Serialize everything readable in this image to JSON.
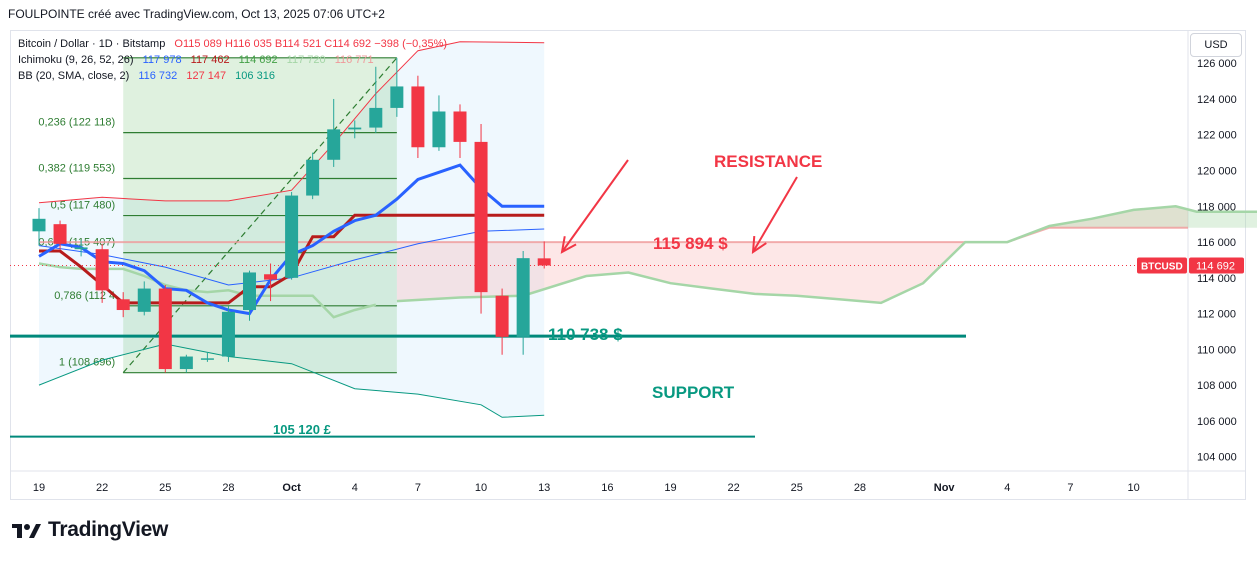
{
  "header": {
    "text": "FOULPOINTE créé avec TradingView.com, Oct 13, 2025 07:06 UTC+2"
  },
  "legend": {
    "symbol": "Bitcoin / Dollar · 1D · Bitstamp",
    "ohlc": {
      "o": "O115 089",
      "h": "H116 035",
      "b": "B114 521",
      "c": "C114 692",
      "change": "−398 (−0,35%)"
    },
    "ichimoku": {
      "label": "Ichimoku (9, 26, 52, 26)",
      "v1": "117 978",
      "v2": "117 462",
      "v3": "114 692",
      "v4": "117 720",
      "v5": "116 771"
    },
    "bb": {
      "label": "BB (20, SMA, close, 2)",
      "v1": "116 732",
      "v2": "127 147",
      "v3": "106 316"
    }
  },
  "currency_button": "USD",
  "brand": "TradingView",
  "colors": {
    "up": "#26a69a",
    "down": "#f23645",
    "tenkan": "#2962ff",
    "kijun": "#b71c1c",
    "chikou": "#43a047",
    "spanA": "#a5d6a7",
    "spanB": "#ef9a9a",
    "bb": "#2962ff",
    "bbUpper": "#f23645",
    "bbLower": "#089981",
    "annotation_red": "#f23645",
    "annotation_green": "#089981",
    "fib": "#2e7d32"
  },
  "chart_data": {
    "type": "candlestick",
    "price_axis": {
      "ylim": [
        103200,
        127800
      ],
      "ticks": [
        104000,
        106000,
        108000,
        110000,
        112000,
        114000,
        116000,
        118000,
        120000,
        122000,
        124000,
        126000
      ],
      "tick_labels": [
        "104 000",
        "106 000",
        "108 000",
        "110 000",
        "112 000",
        "114 000",
        "116 000",
        "118 000",
        "120 000",
        "122 000",
        "124 000",
        "126 000"
      ]
    },
    "last_price": {
      "symbol": "BTCUSD",
      "value": 114692,
      "label": "114 692"
    },
    "time_axis": {
      "ticks": [
        {
          "d": "2025-09-19",
          "label": "19"
        },
        {
          "d": "2025-09-22",
          "label": "22"
        },
        {
          "d": "2025-09-25",
          "label": "25"
        },
        {
          "d": "2025-09-28",
          "label": "28"
        },
        {
          "d": "2025-10-01",
          "label": "Oct"
        },
        {
          "d": "2025-10-04",
          "label": "4"
        },
        {
          "d": "2025-10-07",
          "label": "7"
        },
        {
          "d": "2025-10-10",
          "label": "10"
        },
        {
          "d": "2025-10-13",
          "label": "13"
        },
        {
          "d": "2025-10-16",
          "label": "16"
        },
        {
          "d": "2025-10-19",
          "label": "19"
        },
        {
          "d": "2025-10-22",
          "label": "22"
        },
        {
          "d": "2025-10-25",
          "label": "25"
        },
        {
          "d": "2025-10-28",
          "label": "28"
        },
        {
          "d": "2025-11-01",
          "label": "Nov"
        },
        {
          "d": "2025-11-04",
          "label": "4"
        },
        {
          "d": "2025-11-07",
          "label": "7"
        },
        {
          "d": "2025-11-10",
          "label": "10"
        }
      ]
    },
    "candles": [
      {
        "d": "2025-09-19",
        "o": 116600,
        "h": 117900,
        "l": 115800,
        "c": 117300
      },
      {
        "d": "2025-09-20",
        "o": 117000,
        "h": 117200,
        "l": 115600,
        "c": 115900
      },
      {
        "d": "2025-09-21",
        "o": 115600,
        "h": 116100,
        "l": 115200,
        "c": 115700
      },
      {
        "d": "2025-09-22",
        "o": 115600,
        "h": 115900,
        "l": 112600,
        "c": 113300
      },
      {
        "d": "2025-09-23",
        "o": 112800,
        "h": 113200,
        "l": 111800,
        "c": 112200
      },
      {
        "d": "2025-09-24",
        "o": 112100,
        "h": 113800,
        "l": 111900,
        "c": 113400
      },
      {
        "d": "2025-09-25",
        "o": 113400,
        "h": 113600,
        "l": 108700,
        "c": 108900
      },
      {
        "d": "2025-09-26",
        "o": 108900,
        "h": 109700,
        "l": 108700,
        "c": 109600
      },
      {
        "d": "2025-09-27",
        "o": 109500,
        "h": 109800,
        "l": 109300,
        "c": 109500
      },
      {
        "d": "2025-09-28",
        "o": 109600,
        "h": 112400,
        "l": 109300,
        "c": 112100
      },
      {
        "d": "2025-09-29",
        "o": 112200,
        "h": 114400,
        "l": 111600,
        "c": 114300
      },
      {
        "d": "2025-09-30",
        "o": 114200,
        "h": 114800,
        "l": 112700,
        "c": 113900
      },
      {
        "d": "2025-10-01",
        "o": 114000,
        "h": 118800,
        "l": 113900,
        "c": 118600
      },
      {
        "d": "2025-10-02",
        "o": 118600,
        "h": 121000,
        "l": 118400,
        "c": 120600
      },
      {
        "d": "2025-10-03",
        "o": 120600,
        "h": 124000,
        "l": 120200,
        "c": 122300
      },
      {
        "d": "2025-10-04",
        "o": 122300,
        "h": 122800,
        "l": 121800,
        "c": 122400
      },
      {
        "d": "2025-10-05",
        "o": 122400,
        "h": 125800,
        "l": 122100,
        "c": 123500
      },
      {
        "d": "2025-10-06",
        "o": 123500,
        "h": 126300,
        "l": 123000,
        "c": 124700
      },
      {
        "d": "2025-10-07",
        "o": 124700,
        "h": 125300,
        "l": 120700,
        "c": 121300
      },
      {
        "d": "2025-10-08",
        "o": 121300,
        "h": 124200,
        "l": 121100,
        "c": 123300
      },
      {
        "d": "2025-10-09",
        "o": 123300,
        "h": 123700,
        "l": 120700,
        "c": 121600
      },
      {
        "d": "2025-10-10",
        "o": 121600,
        "h": 122600,
        "l": 112000,
        "c": 113200
      },
      {
        "d": "2025-10-11",
        "o": 113000,
        "h": 113400,
        "l": 109700,
        "c": 110700
      },
      {
        "d": "2025-10-12",
        "o": 110700,
        "h": 115500,
        "l": 109700,
        "c": 115100
      },
      {
        "d": "2025-10-13",
        "o": 115089,
        "h": 116035,
        "l": 114521,
        "c": 114692
      }
    ],
    "tenkan": [
      [
        "2025-09-19",
        115200
      ],
      [
        "2025-09-20",
        115900
      ],
      [
        "2025-09-21",
        115700
      ],
      [
        "2025-09-22",
        114900
      ],
      [
        "2025-09-23",
        114800
      ],
      [
        "2025-09-24",
        114400
      ],
      [
        "2025-09-25",
        113400
      ],
      [
        "2025-09-26",
        113300
      ],
      [
        "2025-09-27",
        112600
      ],
      [
        "2025-09-28",
        112200
      ],
      [
        "2025-09-29",
        112000
      ],
      [
        "2025-09-30",
        113900
      ],
      [
        "2025-10-01",
        115300
      ],
      [
        "2025-10-02",
        115800
      ],
      [
        "2025-10-03",
        116600
      ],
      [
        "2025-10-04",
        117200
      ],
      [
        "2025-10-05",
        117500
      ],
      [
        "2025-10-06",
        118400
      ],
      [
        "2025-10-07",
        119500
      ],
      [
        "2025-10-08",
        119900
      ],
      [
        "2025-10-09",
        120300
      ],
      [
        "2025-10-10",
        119000
      ],
      [
        "2025-10-11",
        118000
      ],
      [
        "2025-10-12",
        118000
      ],
      [
        "2025-10-13",
        118000
      ]
    ],
    "kijun": [
      [
        "2025-09-19",
        115500
      ],
      [
        "2025-09-20",
        115500
      ],
      [
        "2025-09-21",
        114600
      ],
      [
        "2025-09-22",
        113600
      ],
      [
        "2025-09-23",
        112600
      ],
      [
        "2025-09-24",
        112600
      ],
      [
        "2025-09-25",
        112600
      ],
      [
        "2025-09-26",
        112600
      ],
      [
        "2025-09-27",
        112600
      ],
      [
        "2025-09-28",
        112600
      ],
      [
        "2025-09-29",
        113500
      ],
      [
        "2025-09-30",
        113500
      ],
      [
        "2025-10-01",
        114200
      ],
      [
        "2025-10-02",
        116300
      ],
      [
        "2025-10-03",
        116300
      ],
      [
        "2025-10-04",
        117500
      ],
      [
        "2025-10-05",
        117500
      ],
      [
        "2025-10-06",
        117500
      ],
      [
        "2025-10-07",
        117500
      ],
      [
        "2025-10-08",
        117500
      ],
      [
        "2025-10-09",
        117500
      ],
      [
        "2025-10-10",
        117500
      ],
      [
        "2025-10-11",
        117500
      ],
      [
        "2025-10-12",
        117500
      ],
      [
        "2025-10-13",
        117500
      ]
    ],
    "chikou": [
      [
        "2025-09-19",
        114800
      ],
      [
        "2025-09-20",
        114600
      ],
      [
        "2025-09-21",
        114500
      ],
      [
        "2025-09-22",
        114500
      ],
      [
        "2025-09-23",
        114500
      ],
      [
        "2025-09-24",
        114100
      ],
      [
        "2025-09-25",
        113600
      ],
      [
        "2025-09-26",
        113300
      ],
      [
        "2025-09-27",
        113200
      ],
      [
        "2025-09-28",
        113300
      ],
      [
        "2025-09-29",
        113000
      ],
      [
        "2025-09-30",
        113000
      ],
      [
        "2025-10-01",
        113000
      ],
      [
        "2025-10-02",
        113000
      ],
      [
        "2025-10-03",
        111800
      ],
      [
        "2025-10-04",
        112200
      ],
      [
        "2025-10-05",
        112500
      ]
    ],
    "span_a": [
      [
        "2025-10-06",
        112700
      ],
      [
        "2025-10-09",
        112900
      ],
      [
        "2025-10-12",
        113000
      ],
      [
        "2025-10-15",
        114100
      ],
      [
        "2025-10-17",
        114300
      ],
      [
        "2025-10-19",
        113700
      ],
      [
        "2025-10-21",
        113400
      ],
      [
        "2025-10-23",
        113100
      ],
      [
        "2025-10-25",
        113000
      ],
      [
        "2025-10-27",
        112800
      ],
      [
        "2025-10-29",
        112600
      ],
      [
        "2025-10-31",
        113700
      ],
      [
        "2025-11-02",
        116000
      ],
      [
        "2025-11-04",
        116000
      ],
      [
        "2025-11-06",
        116900
      ],
      [
        "2025-11-08",
        117300
      ],
      [
        "2025-11-10",
        117800
      ],
      [
        "2025-11-12",
        118000
      ],
      [
        "2025-11-13",
        117700
      ],
      [
        "2025-11-16",
        117700
      ]
    ],
    "span_b": [
      [
        "2025-09-19",
        116000
      ],
      [
        "2025-10-30",
        116000
      ],
      [
        "2025-11-02",
        116000
      ],
      [
        "2025-11-04",
        116000
      ],
      [
        "2025-11-06",
        116800
      ],
      [
        "2025-11-16",
        116800
      ]
    ],
    "bb_basis": [
      [
        "2025-09-19",
        115800
      ],
      [
        "2025-09-22",
        115300
      ],
      [
        "2025-09-25",
        114600
      ],
      [
        "2025-09-28",
        113600
      ],
      [
        "2025-10-01",
        114000
      ],
      [
        "2025-10-04",
        115000
      ],
      [
        "2025-10-07",
        115900
      ],
      [
        "2025-10-10",
        116600
      ],
      [
        "2025-10-13",
        116732
      ]
    ],
    "bb_upper": [
      [
        "2025-09-19",
        118200
      ],
      [
        "2025-09-22",
        118500
      ],
      [
        "2025-09-25",
        118300
      ],
      [
        "2025-09-28",
        118300
      ],
      [
        "2025-10-01",
        118900
      ],
      [
        "2025-10-03",
        121500
      ],
      [
        "2025-10-05",
        124300
      ],
      [
        "2025-10-07",
        126700
      ],
      [
        "2025-10-09",
        127200
      ],
      [
        "2025-10-13",
        127147
      ]
    ],
    "bb_lower": [
      [
        "2025-09-19",
        108000
      ],
      [
        "2025-09-22",
        109400
      ],
      [
        "2025-09-25",
        110300
      ],
      [
        "2025-09-28",
        109600
      ],
      [
        "2025-10-01",
        109200
      ],
      [
        "2025-10-04",
        107800
      ],
      [
        "2025-10-07",
        107500
      ],
      [
        "2025-10-10",
        106900
      ],
      [
        "2025-10-11",
        106200
      ],
      [
        "2025-10-13",
        106316
      ]
    ],
    "fib": {
      "from_date": "2025-09-23",
      "to_date": "2025-10-06",
      "levels": [
        {
          "ratio": 0,
          "price": 126300,
          "label": ""
        },
        {
          "ratio": 0.236,
          "price": 122118,
          "label": "0,236 (122 118)"
        },
        {
          "ratio": 0.382,
          "price": 119553,
          "label": "0,382 (119 553)"
        },
        {
          "ratio": 0.5,
          "price": 117480,
          "label": "0,5 (117 480)"
        },
        {
          "ratio": 0.618,
          "price": 115407,
          "label": "0,618 (115 407)"
        },
        {
          "ratio": 0.786,
          "price": 112436,
          "label": "0,786 (112 4"
        },
        {
          "ratio": 1,
          "price": 108696,
          "label": "1 (108 696)"
        }
      ]
    },
    "annotations": {
      "resistance_label": "RESISTANCE",
      "resistance_price": "115 894 $",
      "support_label": "SUPPORT",
      "support_price": "110 738 $",
      "lower_price": "105 120 £",
      "resistance_level": 115894,
      "support_level": 110738,
      "lower_level": 105120
    }
  }
}
